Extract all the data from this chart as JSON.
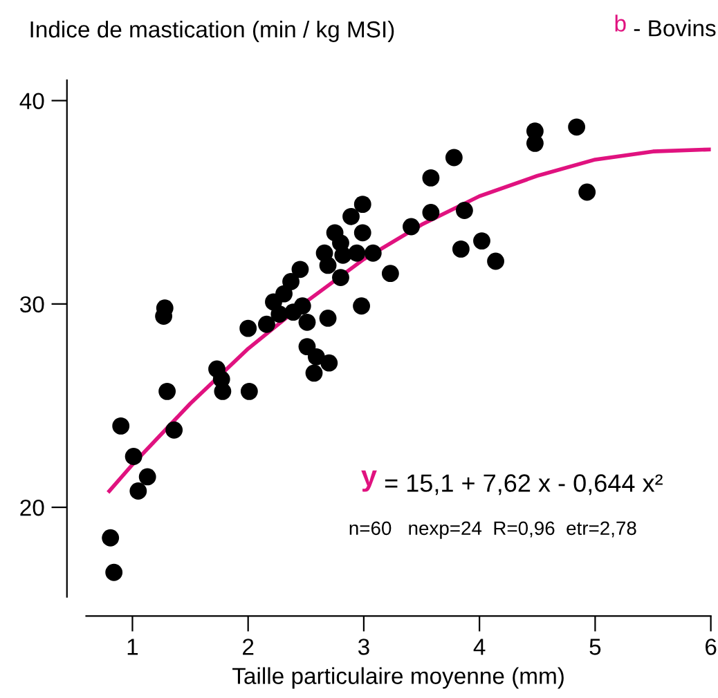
{
  "chart_data": {
    "type": "scatter",
    "ylabel": "Indice de mastication (min / kg MSI)",
    "xlabel": "Taille particulaire moyenne (mm)",
    "annotations": [
      "b - Bovins",
      "y = 15,1 + 7,62 x - 0,644 x²",
      "n=60   nexp=24  R=0,96  etr=2,78"
    ],
    "xlim": [
      0.6,
      6.0
    ],
    "ylim": [
      15.6,
      41
    ],
    "xticks": [
      1,
      2,
      3,
      4,
      5,
      6
    ],
    "yticks": [
      20,
      30,
      40
    ],
    "grid": false,
    "legend": false,
    "marker": "circle",
    "series": [
      {
        "color": "#000000",
        "x": [
          0.81,
          0.84,
          0.9,
          1.01,
          1.05,
          1.13,
          1.3,
          1.36,
          1.73,
          1.77,
          1.78,
          2.01,
          1.28,
          1.27,
          2.99,
          2.89,
          3.41,
          2.75,
          2.99,
          2.8,
          2.66,
          2.82,
          2.94,
          3.08,
          2.69,
          2.45,
          2.8,
          3.23,
          2.37,
          2.31,
          2.22,
          2.27,
          2.39,
          2.47,
          2.98,
          2.0,
          2.16,
          2.51,
          2.69,
          2.51,
          2.59,
          2.7,
          2.57,
          4.48,
          4.48,
          4.84,
          3.78,
          3.58,
          4.93,
          3.58,
          3.87,
          3.84,
          4.02,
          4.14
        ],
        "values": [
          18.5,
          16.8,
          24.0,
          22.5,
          20.8,
          21.5,
          25.7,
          23.8,
          26.8,
          26.3,
          25.7,
          25.7,
          29.8,
          29.4,
          34.9,
          34.3,
          33.8,
          33.5,
          33.5,
          33.0,
          32.5,
          32.4,
          32.5,
          32.5,
          31.9,
          31.7,
          31.3,
          31.5,
          31.1,
          30.5,
          30.1,
          29.5,
          29.6,
          29.9,
          29.9,
          28.8,
          29.0,
          29.1,
          29.3,
          27.9,
          27.4,
          27.1,
          26.6,
          38.5,
          37.9,
          38.7,
          37.2,
          36.2,
          35.5,
          34.5,
          34.6,
          32.7,
          33.1,
          32.1
        ]
      },
      {
        "type": "line",
        "color": "#e0127f",
        "marker": "none",
        "x": [
          0.8,
          1,
          1.5,
          2,
          2.5,
          3,
          3.5,
          4,
          4.5,
          5,
          5.5,
          6
        ],
        "values": [
          20.8,
          22.1,
          25.1,
          27.8,
          30.1,
          32.2,
          33.9,
          35.3,
          36.3,
          37.1,
          37.5,
          37.6
        ]
      }
    ]
  }
}
